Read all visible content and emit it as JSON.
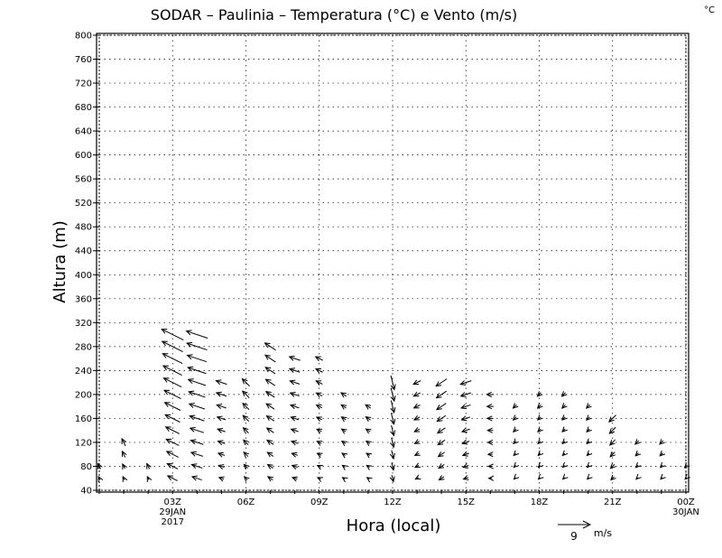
{
  "chart_data": {
    "type": "vector",
    "title": "SODAR – Paulinia – Temperatura (°C) e Vento (m/s)",
    "corner_unit": "°C",
    "xlabel": "Hora (local)",
    "ylabel": "Altura (m)",
    "ylim": [
      40,
      800
    ],
    "yticks": [
      40,
      80,
      120,
      160,
      200,
      240,
      280,
      320,
      360,
      400,
      440,
      480,
      520,
      560,
      600,
      640,
      680,
      720,
      760,
      800
    ],
    "xlim": [
      0,
      24
    ],
    "xticks": [
      {
        "hour": 3,
        "label": "03Z",
        "sub1": "29JAN",
        "sub2": "2017"
      },
      {
        "hour": 6,
        "label": "06Z",
        "sub1": "",
        "sub2": ""
      },
      {
        "hour": 9,
        "label": "09Z",
        "sub1": "",
        "sub2": ""
      },
      {
        "hour": 12,
        "label": "12Z",
        "sub1": "",
        "sub2": ""
      },
      {
        "hour": 15,
        "label": "15Z",
        "sub1": "",
        "sub2": ""
      },
      {
        "hour": 18,
        "label": "18Z",
        "sub1": "",
        "sub2": ""
      },
      {
        "hour": 21,
        "label": "21Z",
        "sub1": "",
        "sub2": ""
      },
      {
        "hour": 24,
        "label": "00Z",
        "sub1": "30JAN",
        "sub2": ""
      }
    ],
    "grid": true,
    "reference_vector": {
      "speed": 9,
      "label": "9",
      "unit": "m/s"
    },
    "wind_columns": [
      {
        "hour": 0,
        "top": 80,
        "u": 1,
        "v": -2
      },
      {
        "hour": 1,
        "top": 120,
        "u": 1,
        "v": -2
      },
      {
        "hour": 2,
        "top": 80,
        "u": 1,
        "v": -2
      },
      {
        "hour": 3,
        "top": 300,
        "u": 6,
        "v": -3
      },
      {
        "hour": 4,
        "top": 310,
        "u": 6,
        "v": -2
      },
      {
        "hour": 5,
        "top": 220,
        "u": 3,
        "v": -1
      },
      {
        "hour": 6,
        "top": 220,
        "u": 2,
        "v": -2
      },
      {
        "hour": 7,
        "top": 280,
        "u": 3,
        "v": -2
      },
      {
        "hour": 8,
        "top": 260,
        "u": 3,
        "v": -1
      },
      {
        "hour": 9,
        "top": 260,
        "u": 2,
        "v": -1
      },
      {
        "hour": 10,
        "top": 210,
        "u": 1.5,
        "v": -1
      },
      {
        "hour": 11,
        "top": 190,
        "u": 1.5,
        "v": -1
      },
      {
        "hour": 12,
        "top": 230,
        "u": -1,
        "v": 4
      },
      {
        "hour": 13,
        "top": 220,
        "u": 2,
        "v": 1
      },
      {
        "hour": 14,
        "top": 220,
        "u": 3,
        "v": 2
      },
      {
        "hour": 15,
        "top": 220,
        "u": 3,
        "v": 1
      },
      {
        "hour": 16,
        "top": 200,
        "u": 2,
        "v": 0
      },
      {
        "hour": 17,
        "top": 190,
        "u": 1,
        "v": 1
      },
      {
        "hour": 18,
        "top": 200,
        "u": 1,
        "v": 1
      },
      {
        "hour": 19,
        "top": 200,
        "u": 1,
        "v": 1
      },
      {
        "hour": 20,
        "top": 190,
        "u": 1,
        "v": 1
      },
      {
        "hour": 21,
        "top": 170,
        "u": 2,
        "v": 2
      },
      {
        "hour": 22,
        "top": 120,
        "u": 1,
        "v": 1
      },
      {
        "hour": 23,
        "top": 120,
        "u": 1,
        "v": 1
      },
      {
        "hour": 24,
        "top": 90,
        "u": 1,
        "v": 1
      }
    ]
  }
}
